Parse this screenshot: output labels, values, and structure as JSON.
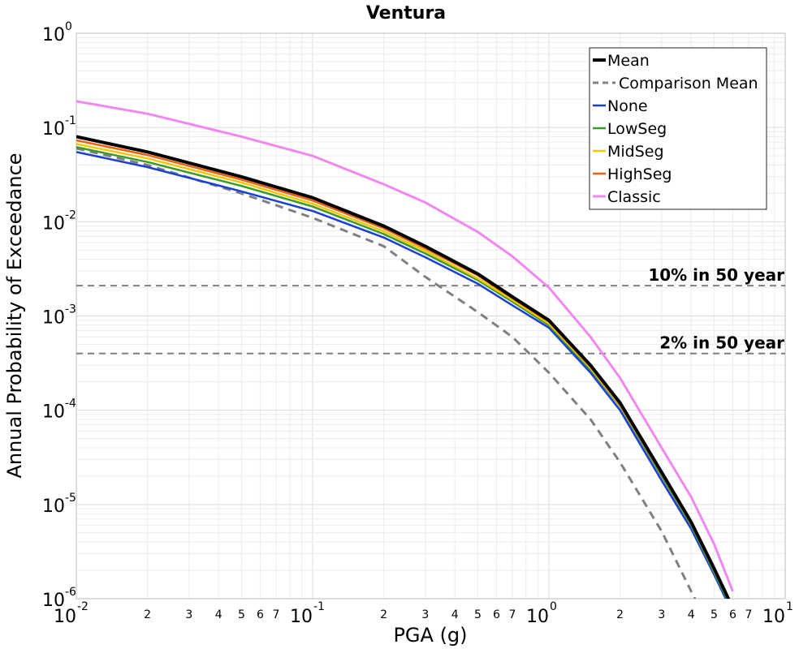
{
  "chart_data": {
    "type": "line",
    "title": "Ventura",
    "xlabel": "PGA (g)",
    "ylabel": "Annual Probability of Exceedance",
    "x_scale": "log",
    "y_scale": "log",
    "xlim": [
      0.01,
      10
    ],
    "ylim": [
      1e-06,
      1
    ],
    "grid": true,
    "legend_position": "top-right",
    "x_major_ticks": [
      {
        "base": "10",
        "exp": "-2"
      },
      {
        "base": "10",
        "exp": "-1"
      },
      {
        "base": "10",
        "exp": "0"
      },
      {
        "base": "10",
        "exp": "1"
      }
    ],
    "y_major_ticks": [
      {
        "base": "10",
        "exp": "0"
      },
      {
        "base": "10",
        "exp": "-1"
      },
      {
        "base": "10",
        "exp": "-2"
      },
      {
        "base": "10",
        "exp": "-3"
      },
      {
        "base": "10",
        "exp": "-4"
      },
      {
        "base": "10",
        "exp": "-5"
      },
      {
        "base": "10",
        "exp": "-6"
      }
    ],
    "x_minor_tick_labels": [
      "2",
      "3",
      "4",
      "5",
      "6",
      "7"
    ],
    "reference_lines": [
      {
        "label": "10% in 50 year",
        "y": 0.0021,
        "color": "#808080"
      },
      {
        "label": "2% in 50 year",
        "y": 0.0004,
        "color": "#808080"
      }
    ],
    "series": [
      {
        "name": "Mean",
        "color": "#000000",
        "dash": "solid",
        "width": 4,
        "x": [
          0.01,
          0.02,
          0.05,
          0.1,
          0.2,
          0.3,
          0.5,
          0.7,
          1.0,
          1.5,
          2.0,
          3.0,
          4.0,
          5.0,
          6.0
        ],
        "y": [
          0.08,
          0.055,
          0.03,
          0.018,
          0.009,
          0.0055,
          0.0028,
          0.0016,
          0.0009,
          0.0003,
          0.00012,
          2.2e-05,
          6.5e-06,
          2.1e-06,
          8e-07
        ]
      },
      {
        "name": "Comparison Mean",
        "color": "#808080",
        "dash": "dashed",
        "width": 3,
        "x": [
          0.01,
          0.02,
          0.05,
          0.1,
          0.2,
          0.3,
          0.5,
          0.7,
          1.0,
          1.5,
          2.0,
          3.0,
          4.0,
          5.0
        ],
        "y": [
          0.06,
          0.04,
          0.02,
          0.011,
          0.0055,
          0.0026,
          0.0011,
          0.0006,
          0.00025,
          8e-05,
          2.8e-05,
          5.2e-06,
          1.2e-06,
          4e-07
        ]
      },
      {
        "name": "None",
        "color": "#1a3fd9",
        "dash": "solid",
        "width": 2.5,
        "x": [
          0.01,
          0.02,
          0.05,
          0.1,
          0.2,
          0.3,
          0.5,
          0.7,
          1.0,
          1.5,
          2.0,
          3.0,
          4.0,
          5.0,
          6.0
        ],
        "y": [
          0.055,
          0.038,
          0.021,
          0.013,
          0.0068,
          0.0042,
          0.0022,
          0.0013,
          0.00075,
          0.00025,
          0.0001,
          1.8e-05,
          5.5e-06,
          1.8e-06,
          7e-07
        ]
      },
      {
        "name": "LowSeg",
        "color": "#3a9a2a",
        "dash": "solid",
        "width": 2.5,
        "x": [
          0.01,
          0.02,
          0.05,
          0.1,
          0.2,
          0.3,
          0.5,
          0.7,
          1.0,
          1.5,
          2.0,
          3.0,
          4.0,
          5.0,
          6.0
        ],
        "y": [
          0.062,
          0.043,
          0.024,
          0.0145,
          0.0074,
          0.0046,
          0.0024,
          0.00142,
          0.0008,
          0.00027,
          0.00011,
          2e-05,
          6e-06,
          1.9e-06,
          7.5e-07
        ]
      },
      {
        "name": "MidSeg",
        "color": "#f0c800",
        "dash": "solid",
        "width": 2.5,
        "x": [
          0.01,
          0.02,
          0.05,
          0.1,
          0.2,
          0.3,
          0.5,
          0.7,
          1.0,
          1.5,
          2.0,
          3.0,
          4.0,
          5.0,
          6.0
        ],
        "y": [
          0.067,
          0.047,
          0.026,
          0.0155,
          0.0079,
          0.0049,
          0.0025,
          0.00148,
          0.00083,
          0.00028,
          0.000112,
          2.1e-05,
          6.2e-06,
          2e-06,
          7.8e-07
        ]
      },
      {
        "name": "HighSeg",
        "color": "#f06010",
        "dash": "solid",
        "width": 2.5,
        "x": [
          0.01,
          0.02,
          0.05,
          0.1,
          0.2,
          0.3,
          0.5,
          0.7,
          1.0,
          1.5,
          2.0,
          3.0,
          4.0,
          5.0,
          6.0
        ],
        "y": [
          0.073,
          0.051,
          0.028,
          0.0168,
          0.0085,
          0.0052,
          0.0027,
          0.00155,
          0.00087,
          0.00029,
          0.000115,
          2.1e-05,
          6.3e-06,
          2e-06,
          8e-07
        ]
      },
      {
        "name": "Classic",
        "color": "#f088f0",
        "dash": "solid",
        "width": 3,
        "x": [
          0.01,
          0.02,
          0.05,
          0.1,
          0.2,
          0.3,
          0.5,
          0.7,
          1.0,
          1.5,
          2.0,
          3.0,
          4.0,
          5.0,
          6.0
        ],
        "y": [
          0.19,
          0.14,
          0.08,
          0.05,
          0.025,
          0.016,
          0.0078,
          0.0043,
          0.002,
          0.0006,
          0.00022,
          4e-05,
          1.2e-05,
          3.8e-06,
          1.2e-06
        ]
      }
    ]
  }
}
